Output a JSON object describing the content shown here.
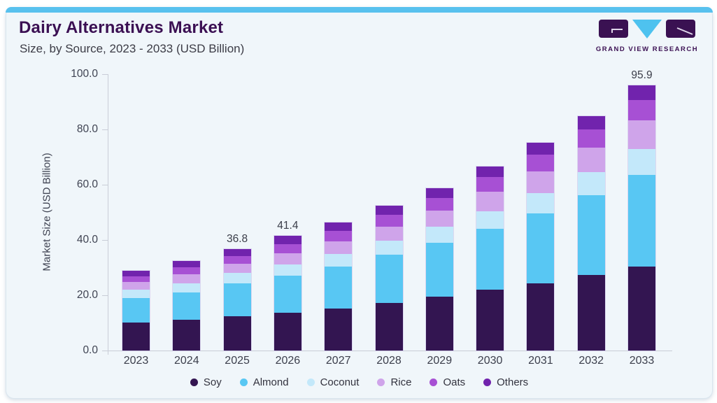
{
  "card": {
    "title": "Dairy Alternatives Market",
    "subtitle": "Size, by Source, 2023 - 2033 (USD Billion)",
    "accent_color": "#58c1ee"
  },
  "logo": {
    "text": "GRAND VIEW RESEARCH",
    "dark_color": "#3a1152",
    "blue_color": "#4ec2ef"
  },
  "chart_data": {
    "type": "bar",
    "stacked": true,
    "title": "Dairy Alternatives Market Size, by Source, 2023 - 2033 (USD Billion)",
    "xlabel": "",
    "ylabel": "Market Size (USD Billion)",
    "ylim": [
      0,
      100
    ],
    "ytick_values": [
      0,
      20,
      40,
      60,
      80,
      100
    ],
    "ytick_labels": [
      "0.0",
      "20.0",
      "40.0",
      "60.0",
      "80.0",
      "100.0"
    ],
    "grid": false,
    "legend_position": "bottom",
    "categories": [
      "2023",
      "2024",
      "2025",
      "2026",
      "2027",
      "2028",
      "2029",
      "2030",
      "2031",
      "2032",
      "2033"
    ],
    "series": [
      {
        "name": "Soy",
        "color": "#331551",
        "values": [
          10.2,
          11.1,
          12.3,
          13.7,
          15.3,
          17.3,
          19.4,
          21.9,
          24.4,
          27.4,
          30.5
        ]
      },
      {
        "name": "Almond",
        "color": "#58c7f3",
        "values": [
          8.7,
          9.9,
          12.0,
          13.4,
          15.0,
          17.4,
          19.5,
          22.1,
          25.2,
          28.8,
          33.0
        ]
      },
      {
        "name": "Coconut",
        "color": "#c3e8fa",
        "values": [
          3.1,
          3.4,
          3.7,
          4.0,
          4.6,
          5.1,
          5.8,
          6.5,
          7.4,
          8.4,
          9.4
        ]
      },
      {
        "name": "Rice",
        "color": "#cfa4ea",
        "values": [
          2.9,
          3.2,
          3.3,
          4.1,
          4.7,
          5.1,
          6.0,
          6.9,
          7.8,
          8.8,
          10.3
        ]
      },
      {
        "name": "Oats",
        "color": "#a750d4",
        "values": [
          2.0,
          2.5,
          2.8,
          3.3,
          3.7,
          4.1,
          4.6,
          5.3,
          6.0,
          6.6,
          7.5
        ]
      },
      {
        "name": "Others",
        "color": "#7123ad",
        "values": [
          2.0,
          2.2,
          2.7,
          2.9,
          3.0,
          3.3,
          3.5,
          3.9,
          4.4,
          4.9,
          5.2
        ]
      }
    ],
    "bar_labels": [
      "",
      "",
      "36.8",
      "41.4",
      "",
      "",
      "",
      "",
      "",
      "",
      "95.9"
    ],
    "axis_color": "#c9cdd7",
    "text_color": "#3f4352"
  }
}
